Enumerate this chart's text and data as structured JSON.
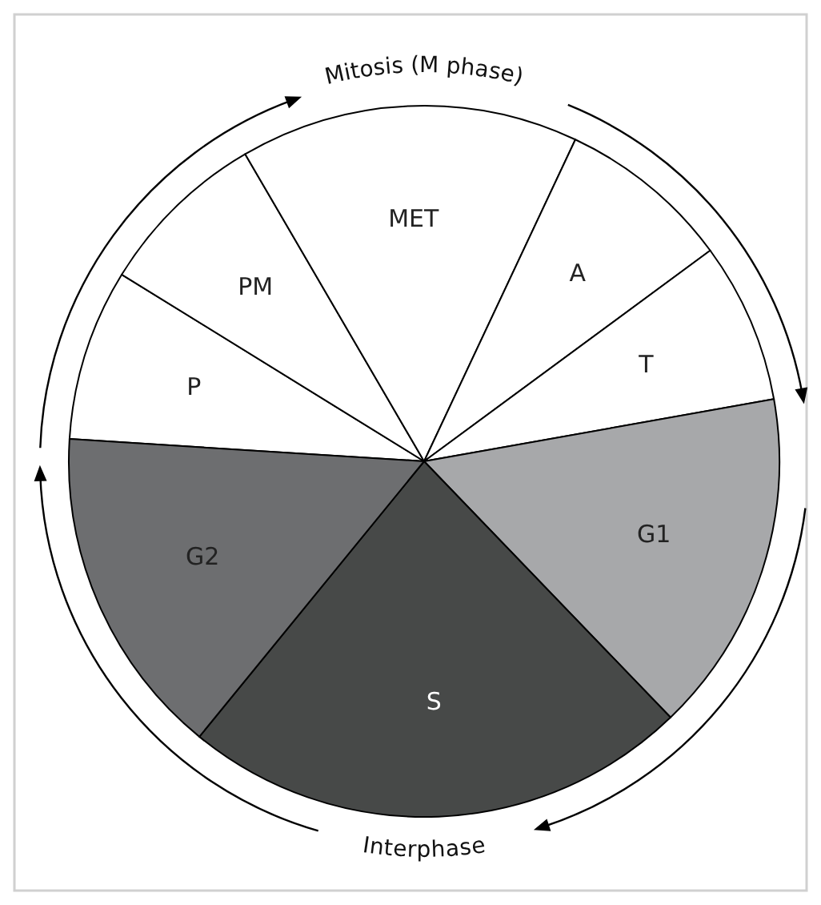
{
  "chart_data": {
    "type": "pie",
    "categories": [
      "P",
      "PM",
      "MET",
      "A",
      "T",
      "G1",
      "S",
      "G2"
    ],
    "values": [
      7.8,
      7.8,
      15.4,
      7.9,
      7.3,
      15.6,
      23.1,
      15.1
    ],
    "colors": [
      "#ffffff",
      "#ffffff",
      "#ffffff",
      "#ffffff",
      "#ffffff",
      "#a7a8aa",
      "#474948",
      "#6d6e70"
    ],
    "annotations": [
      "Mitosis (M phase)",
      "Interphase"
    ]
  }
}
